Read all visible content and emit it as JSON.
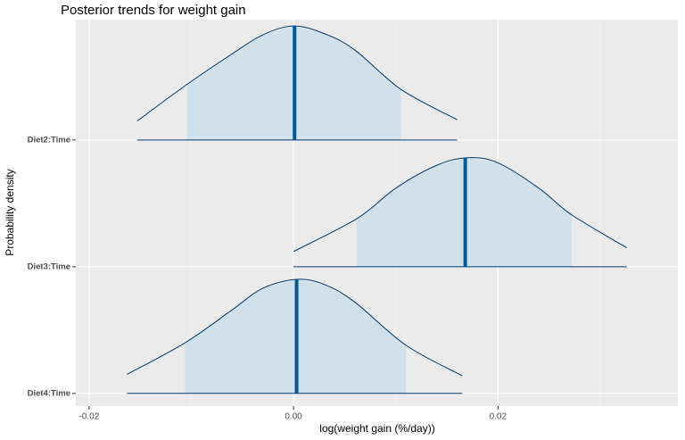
{
  "chart_data": {
    "type": "ridgeline",
    "title": "Posterior trends for weight gain",
    "x_label": "log(weight gain (%/day))",
    "y_label": "Probability density",
    "xlim": [
      -0.0213,
      0.0376
    ],
    "xticks": [
      {
        "value": -0.02,
        "label": "-0.02"
      },
      {
        "value": 0,
        "label": "0.00"
      },
      {
        "value": 0.02,
        "label": "0.02"
      }
    ],
    "grid": true,
    "fill_color": "#d1e1ec",
    "line_color": "#03396c",
    "median_color": "#005b96",
    "series": [
      {
        "name": "Diet2:Time",
        "median": 0.0001,
        "interval": [
          -0.0104,
          0.0105
        ],
        "range": [
          -0.0153,
          0.016
        ],
        "density_x": [
          -0.0153,
          -0.0104,
          -0.006,
          -0.003,
          0,
          0.003,
          0.006,
          0.0105,
          0.016
        ],
        "density": [
          0.15,
          0.44,
          0.68,
          0.83,
          0.9,
          0.84,
          0.71,
          0.4,
          0.16
        ]
      },
      {
        "name": "Diet3:Time",
        "median": 0.0168,
        "interval": [
          0.0062,
          0.0272
        ],
        "range": [
          0,
          0.0326
        ],
        "density_x": [
          0,
          0.0062,
          0.01,
          0.014,
          0.017,
          0.02,
          0.024,
          0.0272,
          0.0326
        ],
        "density": [
          0.12,
          0.38,
          0.62,
          0.8,
          0.86,
          0.82,
          0.62,
          0.41,
          0.15
        ]
      },
      {
        "name": "Diet4:Time",
        "median": 0.0003,
        "interval": [
          -0.0106,
          0.011
        ],
        "range": [
          -0.0163,
          0.0165
        ],
        "density_x": [
          -0.0163,
          -0.0106,
          -0.006,
          -0.003,
          0.0003,
          0.003,
          0.006,
          0.011,
          0.0165
        ],
        "density": [
          0.15,
          0.4,
          0.66,
          0.83,
          0.9,
          0.86,
          0.72,
          0.38,
          0.14
        ]
      }
    ]
  }
}
